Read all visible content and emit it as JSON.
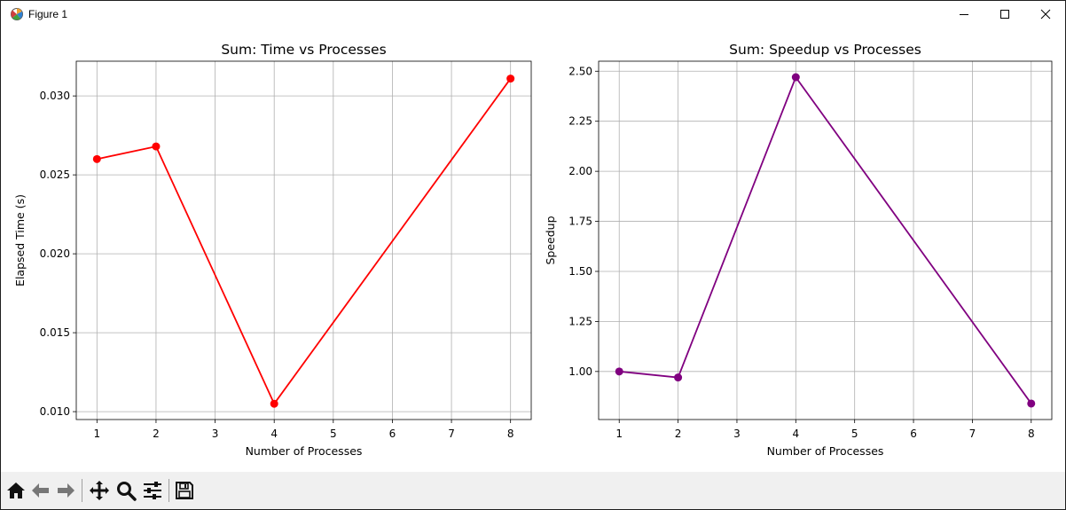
{
  "window": {
    "title": "Figure 1"
  },
  "toolbar": {
    "items": [
      "home-icon",
      "back-icon",
      "forward-icon",
      "pan-icon",
      "zoom-icon",
      "configure-subplots-icon",
      "save-icon"
    ]
  },
  "colors": {
    "time_line": "#ff0000",
    "speedup_line": "#800080",
    "grid": "#b0b0b0"
  },
  "chart_data": [
    {
      "type": "line",
      "title": "Sum: Time vs Processes",
      "xlabel": "Number of Processes",
      "ylabel": "Elapsed Time (s)",
      "x": [
        1,
        2,
        4,
        8
      ],
      "series": [
        {
          "values": [
            0.026,
            0.0268,
            0.0105,
            0.0311
          ]
        }
      ],
      "xticks": [
        1,
        2,
        3,
        4,
        5,
        6,
        7,
        8
      ],
      "xtick_labels": [
        "1",
        "2",
        "3",
        "4",
        "5",
        "6",
        "7",
        "8"
      ],
      "yticks": [
        0.01,
        0.015,
        0.02,
        0.025,
        0.03
      ],
      "ytick_labels": [
        "0.010",
        "0.015",
        "0.020",
        "0.025",
        "0.030"
      ],
      "xlim": [
        0.65,
        8.35
      ],
      "ylim": [
        0.0095,
        0.0322
      ],
      "grid": true,
      "marker": "circle",
      "color": "#ff0000"
    },
    {
      "type": "line",
      "title": "Sum: Speedup vs Processes",
      "xlabel": "Number of Processes",
      "ylabel": "Speedup",
      "x": [
        1,
        2,
        4,
        8
      ],
      "series": [
        {
          "values": [
            1.0,
            0.97,
            2.47,
            0.84
          ]
        }
      ],
      "xticks": [
        1,
        2,
        3,
        4,
        5,
        6,
        7,
        8
      ],
      "xtick_labels": [
        "1",
        "2",
        "3",
        "4",
        "5",
        "6",
        "7",
        "8"
      ],
      "yticks": [
        1.0,
        1.25,
        1.5,
        1.75,
        2.0,
        2.25,
        2.5
      ],
      "ytick_labels": [
        "1.00",
        "1.25",
        "1.50",
        "1.75",
        "2.00",
        "2.25",
        "2.50"
      ],
      "xlim": [
        0.65,
        8.35
      ],
      "ylim": [
        0.76,
        2.55
      ],
      "grid": true,
      "marker": "circle",
      "color": "#800080"
    }
  ]
}
